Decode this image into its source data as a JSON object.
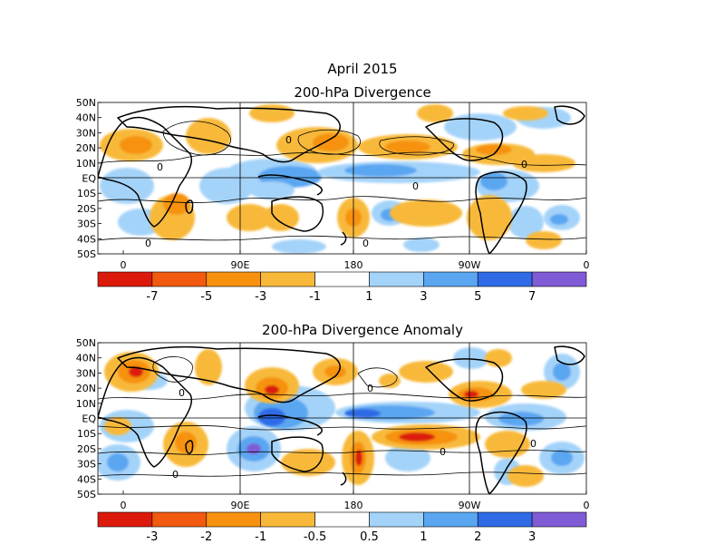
{
  "header": {
    "title_line1": "April 2015",
    "title_line2": "200-hPa Divergence"
  },
  "map2": {
    "title": "200-hPa Divergence Anomaly"
  },
  "axes": {
    "lat_labels": [
      "50N",
      "40N",
      "30N",
      "20N",
      "10N",
      "EQ",
      "10S",
      "20S",
      "30S",
      "40S",
      "50S"
    ],
    "lon_labels": [
      "0",
      "90E",
      "180",
      "90W",
      "0"
    ]
  },
  "colorbar1": {
    "colors": [
      "#dc1a0c",
      "#f15a0f",
      "#f6920f",
      "#f8b93a",
      "#ffffff",
      "#a4d3f9",
      "#5aa6f1",
      "#2f6be6",
      "#7f5bd5"
    ],
    "labels": [
      "-7",
      "-5",
      "-3",
      "-1",
      "1",
      "3",
      "5",
      "7"
    ]
  },
  "colorbar2": {
    "colors": [
      "#dc1a0c",
      "#f15a0f",
      "#f6920f",
      "#f8b93a",
      "#ffffff",
      "#a4d3f9",
      "#5aa6f1",
      "#2f6be6",
      "#7f5bd5"
    ],
    "labels": [
      "-3",
      "-2",
      "-1",
      "-0.5",
      "0.5",
      "1",
      "2",
      "3"
    ]
  },
  "contour_label": "0"
}
